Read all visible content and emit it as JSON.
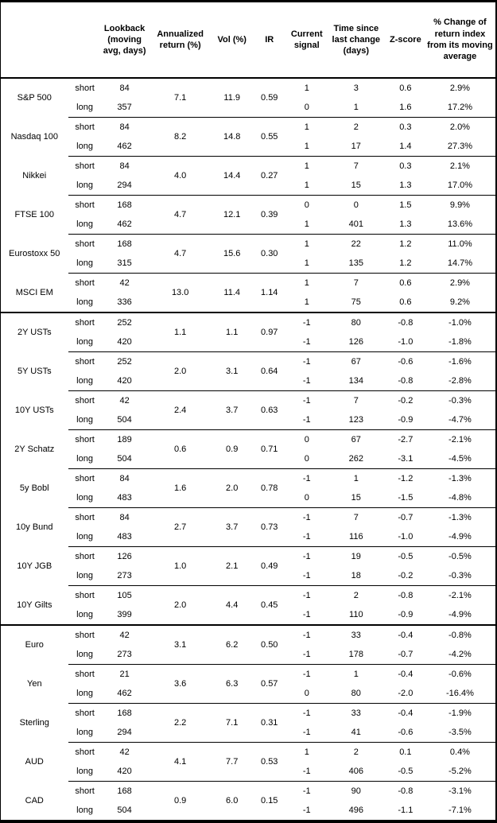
{
  "table": {
    "column_headers": {
      "name": "",
      "leg": "",
      "lookback": "Lookback (moving avg, days)",
      "annualized_return": "Annualized return (%)",
      "vol": "Vol (%)",
      "ir": "IR",
      "current_signal": "Current signal",
      "time_since": "Time since last change (days)",
      "zscore": "Z-score",
      "pct_change": "% Change of return index from its moving average"
    },
    "leg_labels": {
      "short": "short",
      "long": "long"
    },
    "groups": [
      [
        {
          "name": "S&P 500",
          "annualized_return": "7.1",
          "vol": "11.9",
          "ir": "0.59",
          "short": {
            "lookback": "84",
            "signal": "1",
            "time_since": "3",
            "zscore": "0.6",
            "pct_change": "2.9%"
          },
          "long": {
            "lookback": "357",
            "signal": "0",
            "time_since": "1",
            "zscore": "1.6",
            "pct_change": "17.2%"
          }
        },
        {
          "name": "Nasdaq 100",
          "annualized_return": "8.2",
          "vol": "14.8",
          "ir": "0.55",
          "short": {
            "lookback": "84",
            "signal": "1",
            "time_since": "2",
            "zscore": "0.3",
            "pct_change": "2.0%"
          },
          "long": {
            "lookback": "462",
            "signal": "1",
            "time_since": "17",
            "zscore": "1.4",
            "pct_change": "27.3%"
          }
        },
        {
          "name": "Nikkei",
          "annualized_return": "4.0",
          "vol": "14.4",
          "ir": "0.27",
          "short": {
            "lookback": "84",
            "signal": "1",
            "time_since": "7",
            "zscore": "0.3",
            "pct_change": "2.1%"
          },
          "long": {
            "lookback": "294",
            "signal": "1",
            "time_since": "15",
            "zscore": "1.3",
            "pct_change": "17.0%"
          }
        },
        {
          "name": "FTSE 100",
          "annualized_return": "4.7",
          "vol": "12.1",
          "ir": "0.39",
          "short": {
            "lookback": "168",
            "signal": "0",
            "time_since": "0",
            "zscore": "1.5",
            "pct_change": "9.9%"
          },
          "long": {
            "lookback": "462",
            "signal": "1",
            "time_since": "401",
            "zscore": "1.3",
            "pct_change": "13.6%"
          }
        },
        {
          "name": "Eurostoxx 50",
          "annualized_return": "4.7",
          "vol": "15.6",
          "ir": "0.30",
          "short": {
            "lookback": "168",
            "signal": "1",
            "time_since": "22",
            "zscore": "1.2",
            "pct_change": "11.0%"
          },
          "long": {
            "lookback": "315",
            "signal": "1",
            "time_since": "135",
            "zscore": "1.2",
            "pct_change": "14.7%"
          }
        },
        {
          "name": "MSCI EM",
          "annualized_return": "13.0",
          "vol": "11.4",
          "ir": "1.14",
          "short": {
            "lookback": "42",
            "signal": "1",
            "time_since": "7",
            "zscore": "0.6",
            "pct_change": "2.9%"
          },
          "long": {
            "lookback": "336",
            "signal": "1",
            "time_since": "75",
            "zscore": "0.6",
            "pct_change": "9.2%"
          }
        }
      ],
      [
        {
          "name": "2Y USTs",
          "annualized_return": "1.1",
          "vol": "1.1",
          "ir": "0.97",
          "short": {
            "lookback": "252",
            "signal": "-1",
            "time_since": "80",
            "zscore": "-0.8",
            "pct_change": "-1.0%"
          },
          "long": {
            "lookback": "420",
            "signal": "-1",
            "time_since": "126",
            "zscore": "-1.0",
            "pct_change": "-1.8%"
          }
        },
        {
          "name": "5Y USTs",
          "annualized_return": "2.0",
          "vol": "3.1",
          "ir": "0.64",
          "short": {
            "lookback": "252",
            "signal": "-1",
            "time_since": "67",
            "zscore": "-0.6",
            "pct_change": "-1.6%"
          },
          "long": {
            "lookback": "420",
            "signal": "-1",
            "time_since": "134",
            "zscore": "-0.8",
            "pct_change": "-2.8%"
          }
        },
        {
          "name": "10Y USTs",
          "annualized_return": "2.4",
          "vol": "3.7",
          "ir": "0.63",
          "short": {
            "lookback": "42",
            "signal": "-1",
            "time_since": "7",
            "zscore": "-0.2",
            "pct_change": "-0.3%"
          },
          "long": {
            "lookback": "504",
            "signal": "-1",
            "time_since": "123",
            "zscore": "-0.9",
            "pct_change": "-4.7%"
          }
        },
        {
          "name": "2Y Schatz",
          "annualized_return": "0.6",
          "vol": "0.9",
          "ir": "0.71",
          "short": {
            "lookback": "189",
            "signal": "0",
            "time_since": "67",
            "zscore": "-2.7",
            "pct_change": "-2.1%"
          },
          "long": {
            "lookback": "504",
            "signal": "0",
            "time_since": "262",
            "zscore": "-3.1",
            "pct_change": "-4.5%"
          }
        },
        {
          "name": "5y Bobl",
          "annualized_return": "1.6",
          "vol": "2.0",
          "ir": "0.78",
          "short": {
            "lookback": "84",
            "signal": "-1",
            "time_since": "1",
            "zscore": "-1.2",
            "pct_change": "-1.3%"
          },
          "long": {
            "lookback": "483",
            "signal": "0",
            "time_since": "15",
            "zscore": "-1.5",
            "pct_change": "-4.8%"
          }
        },
        {
          "name": "10y Bund",
          "annualized_return": "2.7",
          "vol": "3.7",
          "ir": "0.73",
          "short": {
            "lookback": "84",
            "signal": "-1",
            "time_since": "7",
            "zscore": "-0.7",
            "pct_change": "-1.3%"
          },
          "long": {
            "lookback": "483",
            "signal": "-1",
            "time_since": "116",
            "zscore": "-1.0",
            "pct_change": "-4.9%"
          }
        },
        {
          "name": "10Y JGB",
          "annualized_return": "1.0",
          "vol": "2.1",
          "ir": "0.49",
          "short": {
            "lookback": "126",
            "signal": "-1",
            "time_since": "19",
            "zscore": "-0.5",
            "pct_change": "-0.5%"
          },
          "long": {
            "lookback": "273",
            "signal": "-1",
            "time_since": "18",
            "zscore": "-0.2",
            "pct_change": "-0.3%"
          }
        },
        {
          "name": "10Y Gilts",
          "annualized_return": "2.0",
          "vol": "4.4",
          "ir": "0.45",
          "short": {
            "lookback": "105",
            "signal": "-1",
            "time_since": "2",
            "zscore": "-0.8",
            "pct_change": "-2.1%"
          },
          "long": {
            "lookback": "399",
            "signal": "-1",
            "time_since": "110",
            "zscore": "-0.9",
            "pct_change": "-4.9%"
          }
        }
      ],
      [
        {
          "name": "Euro",
          "annualized_return": "3.1",
          "vol": "6.2",
          "ir": "0.50",
          "short": {
            "lookback": "42",
            "signal": "-1",
            "time_since": "33",
            "zscore": "-0.4",
            "pct_change": "-0.8%"
          },
          "long": {
            "lookback": "273",
            "signal": "-1",
            "time_since": "178",
            "zscore": "-0.7",
            "pct_change": "-4.2%"
          }
        },
        {
          "name": "Yen",
          "annualized_return": "3.6",
          "vol": "6.3",
          "ir": "0.57",
          "short": {
            "lookback": "21",
            "signal": "-1",
            "time_since": "1",
            "zscore": "-0.4",
            "pct_change": "-0.6%"
          },
          "long": {
            "lookback": "462",
            "signal": "0",
            "time_since": "80",
            "zscore": "-2.0",
            "pct_change": "-16.4%"
          }
        },
        {
          "name": "Sterling",
          "annualized_return": "2.2",
          "vol": "7.1",
          "ir": "0.31",
          "short": {
            "lookback": "168",
            "signal": "-1",
            "time_since": "33",
            "zscore": "-0.4",
            "pct_change": "-1.9%"
          },
          "long": {
            "lookback": "294",
            "signal": "-1",
            "time_since": "41",
            "zscore": "-0.6",
            "pct_change": "-3.5%"
          }
        },
        {
          "name": "AUD",
          "annualized_return": "4.1",
          "vol": "7.7",
          "ir": "0.53",
          "short": {
            "lookback": "42",
            "signal": "1",
            "time_since": "2",
            "zscore": "0.1",
            "pct_change": "0.4%"
          },
          "long": {
            "lookback": "420",
            "signal": "-1",
            "time_since": "406",
            "zscore": "-0.5",
            "pct_change": "-5.2%"
          }
        },
        {
          "name": "CAD",
          "annualized_return": "0.9",
          "vol": "6.0",
          "ir": "0.15",
          "short": {
            "lookback": "168",
            "signal": "-1",
            "time_since": "90",
            "zscore": "-0.8",
            "pct_change": "-3.1%"
          },
          "long": {
            "lookback": "504",
            "signal": "-1",
            "time_since": "496",
            "zscore": "-1.1",
            "pct_change": "-7.1%"
          }
        }
      ]
    ]
  }
}
